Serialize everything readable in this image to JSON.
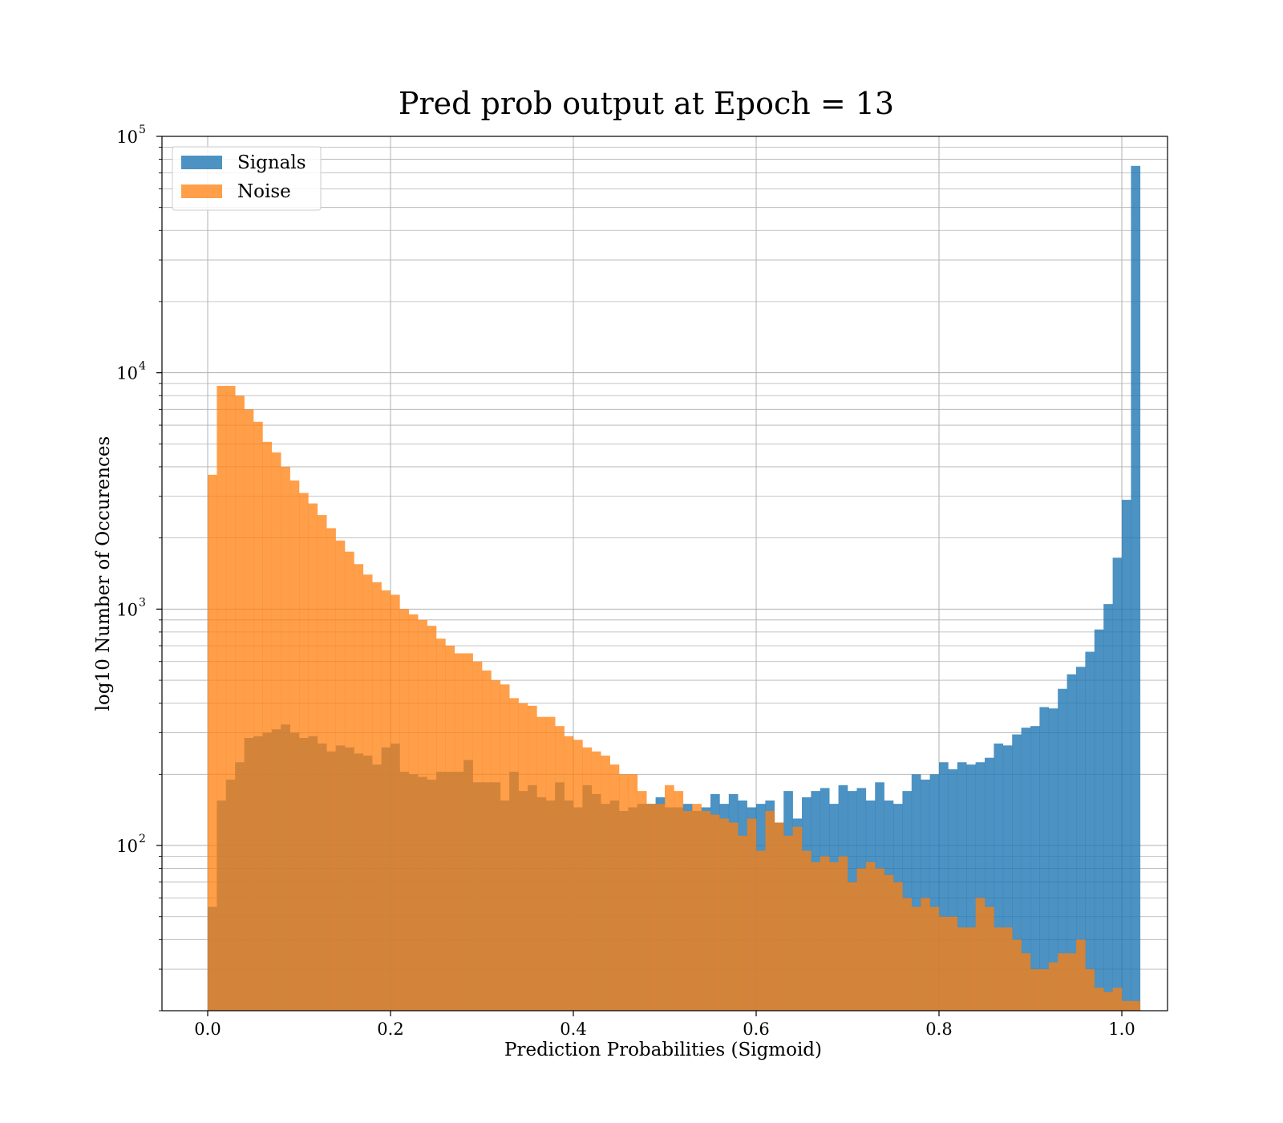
{
  "chart_data": {
    "type": "bar",
    "title": "Pred prob output at Epoch = 13",
    "xlabel": "Prediction Probabilities (Sigmoid)",
    "ylabel": "log10 Number of Occurences",
    "xlim": [
      -0.05,
      1.05
    ],
    "ylim": [
      20,
      100000
    ],
    "yscale": "log",
    "grid": true,
    "legend_position": "top-left",
    "x_ticks": [
      {
        "value": 0.0,
        "label": "0.0"
      },
      {
        "value": 0.2,
        "label": "0.2"
      },
      {
        "value": 0.4,
        "label": "0.4"
      },
      {
        "value": 0.6,
        "label": "0.6"
      },
      {
        "value": 0.8,
        "label": "0.8"
      },
      {
        "value": 1.0,
        "label": "1.0"
      }
    ],
    "y_ticks": [
      {
        "value": 100,
        "base": "10",
        "exp": "2"
      },
      {
        "value": 1000,
        "base": "10",
        "exp": "3"
      },
      {
        "value": 10000,
        "base": "10",
        "exp": "4"
      },
      {
        "value": 100000,
        "base": "10",
        "exp": "5"
      }
    ],
    "bin_start": 0.0,
    "bin_width": 0.01,
    "series": [
      {
        "name": "Signals",
        "color": "#1f77b4",
        "opacity": 0.8,
        "values": [
          55,
          155,
          190,
          225,
          285,
          290,
          300,
          310,
          325,
          300,
          285,
          290,
          270,
          250,
          265,
          260,
          245,
          240,
          220,
          260,
          270,
          205,
          200,
          195,
          190,
          205,
          205,
          205,
          230,
          185,
          185,
          185,
          155,
          205,
          170,
          180,
          160,
          155,
          185,
          155,
          145,
          180,
          165,
          150,
          155,
          140,
          145,
          150,
          150,
          160,
          145,
          145,
          150,
          140,
          145,
          165,
          150,
          165,
          155,
          145,
          150,
          155,
          125,
          170,
          130,
          160,
          170,
          175,
          150,
          180,
          170,
          175,
          155,
          185,
          155,
          150,
          170,
          200,
          190,
          200,
          225,
          210,
          225,
          220,
          225,
          235,
          270,
          265,
          295,
          315,
          320,
          385,
          380,
          460,
          530,
          570,
          660,
          820,
          1050,
          1650,
          2900,
          75000
        ]
      },
      {
        "name": "Noise",
        "color": "#ff7f0e",
        "opacity": 0.75,
        "values": [
          3700,
          8800,
          8800,
          8000,
          7000,
          6200,
          5100,
          4600,
          4000,
          3500,
          3100,
          2800,
          2500,
          2200,
          1950,
          1750,
          1550,
          1400,
          1300,
          1200,
          1150,
          1000,
          950,
          900,
          850,
          750,
          700,
          650,
          650,
          600,
          550,
          500,
          480,
          420,
          400,
          390,
          350,
          350,
          320,
          290,
          280,
          260,
          250,
          240,
          220,
          200,
          200,
          170,
          150,
          150,
          180,
          170,
          140,
          150,
          140,
          135,
          130,
          125,
          110,
          130,
          95,
          140,
          125,
          110,
          120,
          95,
          85,
          90,
          85,
          90,
          70,
          80,
          85,
          80,
          75,
          70,
          60,
          55,
          60,
          55,
          50,
          50,
          45,
          45,
          60,
          55,
          45,
          45,
          40,
          35,
          30,
          30,
          32,
          35,
          35,
          40,
          30,
          25,
          24,
          25,
          22,
          22
        ]
      }
    ]
  }
}
